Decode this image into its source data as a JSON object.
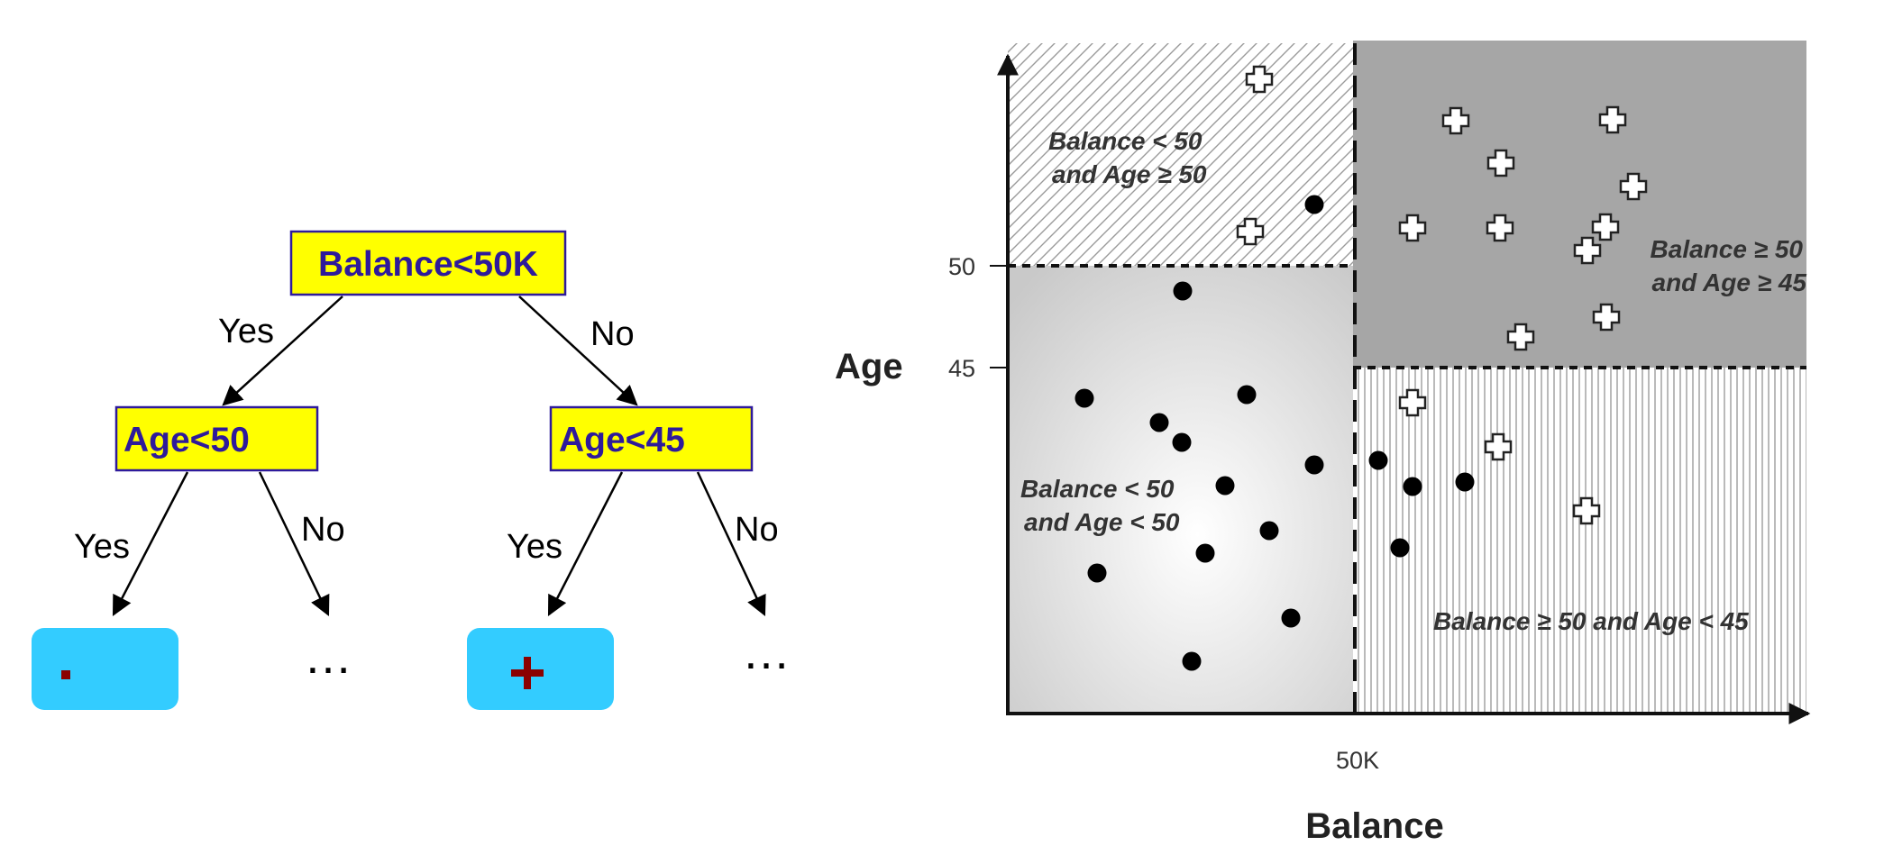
{
  "tree": {
    "root": {
      "label": "Balance<50K"
    },
    "left_node": {
      "label": "Age<50"
    },
    "right_node": {
      "label": "Age<45"
    },
    "edges": {
      "root_yes": "Yes",
      "root_no": "No",
      "left_yes": "Yes",
      "left_no": "No",
      "right_yes": "Yes",
      "right_no": "No"
    },
    "leaves": {
      "leaf_1": "-",
      "leaf_2": "…",
      "leaf_3": "+",
      "leaf_4": "…"
    },
    "colors": {
      "node_fill": "#ffff00",
      "node_border": "#2e1a9b",
      "node_text": "#2e1a9b",
      "leaf_fill": "#33ccff",
      "leaf_symbol": "#8b0000"
    }
  },
  "plot": {
    "axes": {
      "x_title": "Balance",
      "y_title": "Age",
      "x_ticks": [
        "50K"
      ],
      "y_ticks": [
        "50",
        "45"
      ]
    },
    "regions": {
      "top_left": [
        "Balance < 50",
        "and Age ≥ 50"
      ],
      "top_right": [
        "Balance ≥ 50",
        "and Age ≥ 45"
      ],
      "bottom_left": [
        "Balance < 50",
        "and Age < 50"
      ],
      "bottom_right": "Balance ≥ 50 and Age < 45"
    },
    "colors": {
      "top_right_fill": "#a6a6a6",
      "axis": "#111111"
    },
    "icons": {
      "positive": "plus-icon",
      "negative": "dot-icon"
    }
  }
}
